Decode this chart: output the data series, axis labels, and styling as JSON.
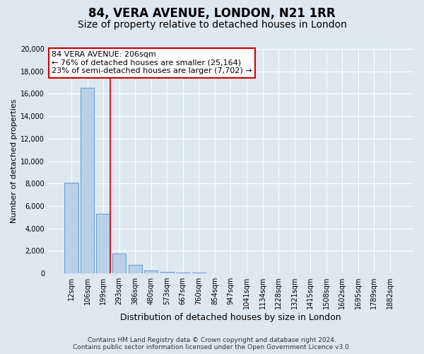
{
  "title": "84, VERA AVENUE, LONDON, N21 1RR",
  "subtitle": "Size of property relative to detached houses in London",
  "xlabel": "Distribution of detached houses by size in London",
  "ylabel": "Number of detached properties",
  "bar_labels": [
    "12sqm",
    "106sqm",
    "199sqm",
    "293sqm",
    "386sqm",
    "480sqm",
    "573sqm",
    "667sqm",
    "760sqm",
    "854sqm",
    "947sqm",
    "1041sqm",
    "1134sqm",
    "1228sqm",
    "1321sqm",
    "1415sqm",
    "1508sqm",
    "1602sqm",
    "1695sqm",
    "1789sqm",
    "1882sqm"
  ],
  "bar_values": [
    8100,
    16500,
    5300,
    1800,
    750,
    280,
    150,
    80,
    40,
    20,
    10,
    5,
    3,
    2,
    2,
    1,
    1,
    1,
    1,
    1,
    1
  ],
  "bar_color": "#b8d0e8",
  "bar_edge_color": "#6699cc",
  "vline_color": "#cc0000",
  "vline_x_index": 2,
  "annotation_line1": "84 VERA AVENUE: 206sqm",
  "annotation_line2": "← 76% of detached houses are smaller (25,164)",
  "annotation_line3": "23% of semi-detached houses are larger (7,702) →",
  "annotation_box_facecolor": "#ffffff",
  "annotation_box_edgecolor": "#cc0000",
  "ylim": [
    0,
    20000
  ],
  "yticks": [
    0,
    2000,
    4000,
    6000,
    8000,
    10000,
    12000,
    14000,
    16000,
    18000,
    20000
  ],
  "background_color": "#dde8f0",
  "plot_background": "#dde8f0",
  "grid_color": "#ffffff",
  "title_fontsize": 12,
  "subtitle_fontsize": 10,
  "xlabel_fontsize": 9,
  "ylabel_fontsize": 8,
  "tick_fontsize": 7,
  "annotation_fontsize": 8,
  "footer_fontsize": 6.5,
  "footer1": "Contains HM Land Registry data © Crown copyright and database right 2024.",
  "footer2": "Contains public sector information licensed under the Open Government Licence v3.0."
}
